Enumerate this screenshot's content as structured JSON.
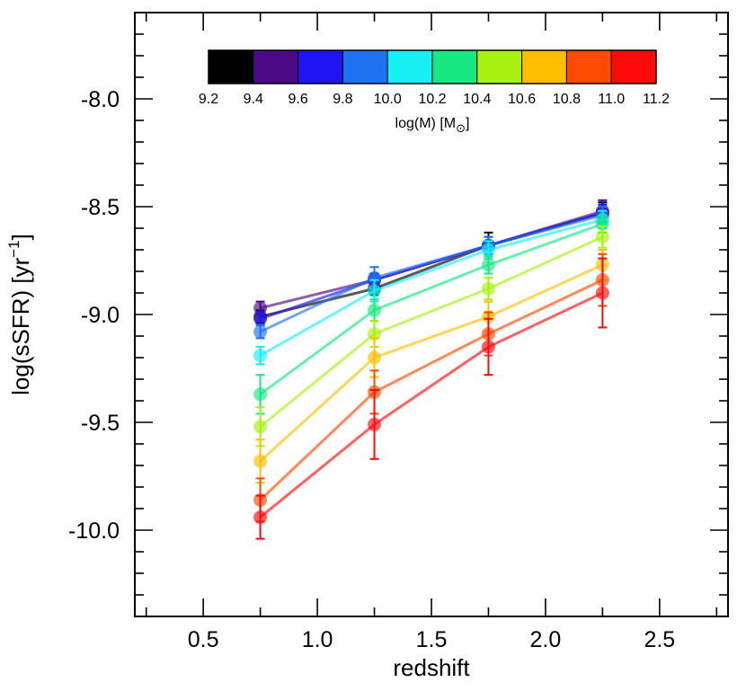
{
  "chart_data": {
    "type": "line",
    "xlabel": "redshift",
    "ylabel": "log(sSFR) [yr",
    "ylabel_sup": "−1",
    "ylabel_close": "]",
    "xlim": [
      0.2,
      2.8
    ],
    "ylim": [
      -10.4,
      -7.6
    ],
    "x_ticks": [
      0.5,
      1.0,
      1.5,
      2.0,
      2.5
    ],
    "x_tick_labels": [
      "0.5",
      "1.0",
      "1.5",
      "2.0",
      "2.5"
    ],
    "y_ticks": [
      -8.0,
      -8.5,
      -9.0,
      -9.5,
      -10.0
    ],
    "y_tick_labels": [
      "-8.0",
      "-8.5",
      "-9.0",
      "-9.5",
      "-10.0"
    ],
    "x": [
      0.75,
      1.25,
      1.75,
      2.25
    ],
    "colorbar": {
      "label": "log(M) [M",
      "label_sub": "⊙",
      "label_close": "]",
      "tick_labels": [
        "9.2",
        "9.4",
        "9.6",
        "9.8",
        "10.0",
        "10.2",
        "10.4",
        "10.6",
        "10.8",
        "11.0",
        "11.2"
      ],
      "colors": [
        "#000000",
        "#4b0b86",
        "#2015f5",
        "#1e73f0",
        "#17f0f3",
        "#17e882",
        "#a8f012",
        "#ffbe00",
        "#ff4a00",
        "#ff0a0a"
      ]
    },
    "series": [
      {
        "name": "9.2-9.4",
        "color": "#000000",
        "values": [
          -9.01,
          -8.88,
          -8.68,
          -8.53
        ],
        "err": [
          0.03,
          0.03,
          0.06,
          0.05
        ]
      },
      {
        "name": "9.4-9.6",
        "color": "#4b0b86",
        "values": [
          -8.97,
          -8.84,
          -8.68,
          -8.52
        ],
        "err": [
          0.03,
          0.03,
          0.04,
          0.05
        ]
      },
      {
        "name": "9.6-9.8",
        "color": "#2015f5",
        "values": [
          -9.02,
          -8.84,
          -8.68,
          -8.53
        ],
        "err": [
          0.03,
          0.03,
          0.04,
          0.04
        ]
      },
      {
        "name": "9.8-10.0",
        "color": "#1e73f0",
        "values": [
          -9.08,
          -8.83,
          -8.68,
          -8.54
        ],
        "err": [
          0.03,
          0.05,
          0.04,
          0.04
        ]
      },
      {
        "name": "10.0-10.2",
        "color": "#17f0f3",
        "values": [
          -9.19,
          -8.89,
          -8.7,
          -8.56
        ],
        "err": [
          0.04,
          0.05,
          0.04,
          0.04
        ]
      },
      {
        "name": "10.2-10.4",
        "color": "#17e882",
        "values": [
          -9.37,
          -8.98,
          -8.77,
          -8.58
        ],
        "err": [
          0.09,
          0.05,
          0.04,
          0.04
        ]
      },
      {
        "name": "10.4-10.6",
        "color": "#a8f012",
        "values": [
          -9.52,
          -9.09,
          -8.88,
          -8.64
        ],
        "err": [
          0.09,
          0.06,
          0.05,
          0.05
        ]
      },
      {
        "name": "10.6-10.8",
        "color": "#ffbe00",
        "values": [
          -9.68,
          -9.2,
          -9.01,
          -8.77
        ],
        "err": [
          0.1,
          0.09,
          0.07,
          0.07
        ]
      },
      {
        "name": "10.8-11.0",
        "color": "#ff4a00",
        "values": [
          -9.86,
          -9.36,
          -9.09,
          -8.84
        ],
        "err": [
          0.1,
          0.1,
          0.1,
          0.12
        ]
      },
      {
        "name": "11.0-11.2",
        "color": "#ff0a0a",
        "values": [
          -9.94,
          -9.51,
          -9.15,
          -8.9
        ],
        "err": [
          0.1,
          0.16,
          0.13,
          0.16
        ]
      }
    ]
  }
}
